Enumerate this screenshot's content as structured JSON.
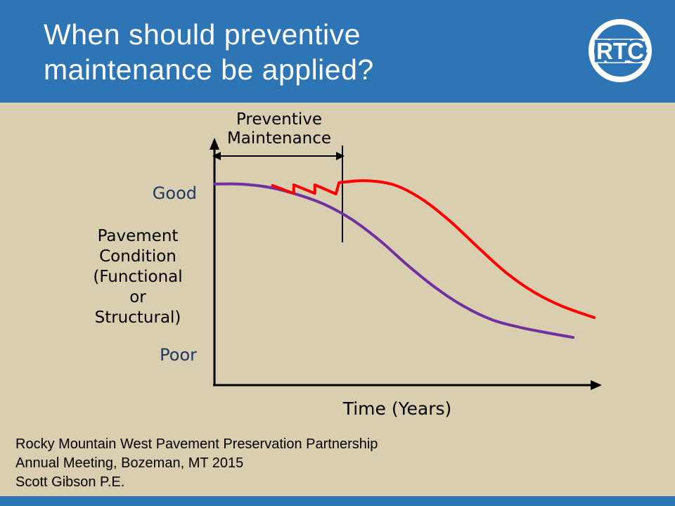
{
  "slide": {
    "title_lines": [
      "When should preventive",
      "maintenance be applied?"
    ],
    "logo_text": "RTC",
    "footer_lines": [
      "Rocky Mountain West Pavement Preservation Partnership",
      "Annual Meeting, Bozeman, MT 2015",
      "Scott Gibson P.E."
    ]
  },
  "colors": {
    "header_blue": "#2E75B6",
    "body_tan": "#D9CFB0",
    "label_navy": "#1F3864",
    "axis_black": "#000000",
    "curve_purple": "#7030A0",
    "curve_red": "#FF0000",
    "title_white": "#FFFFFF"
  },
  "chart_data": {
    "type": "line",
    "title": "",
    "xlabel": "Time (Years)",
    "ylabel_lines": [
      "Pavement",
      "Condition",
      "(Functional",
      "or",
      "Structural)"
    ],
    "y_axis_qualitative_labels": {
      "top": "Good",
      "bottom": "Poor"
    },
    "annotation": {
      "label_lines": [
        "Preventive",
        "Maintenance"
      ]
    },
    "x_range_normalized": [
      0,
      1
    ],
    "y_range_normalized": [
      0,
      1
    ],
    "grid": false,
    "legend": "none",
    "series": [
      {
        "id": "deterioration-curve-no-maintenance",
        "color": "#7030A0",
        "width": 4,
        "segments": [
          {
            "smooth": true,
            "points": [
              [
                0.0,
                0.822
              ],
              [
                0.064,
                0.822
              ],
              [
                0.138,
                0.81
              ],
              [
                0.211,
                0.782
              ],
              [
                0.284,
                0.741
              ],
              [
                0.358,
                0.678
              ],
              [
                0.431,
                0.592
              ],
              [
                0.505,
                0.489
              ],
              [
                0.578,
                0.397
              ],
              [
                0.651,
                0.322
              ],
              [
                0.725,
                0.267
              ],
              [
                0.798,
                0.236
              ],
              [
                0.872,
                0.213
              ],
              [
                0.936,
                0.195
              ]
            ]
          }
        ]
      },
      {
        "id": "deterioration-curve-with-preventive-maintenance",
        "color": "#FF0000",
        "width": 4,
        "segments": [
          {
            "smooth": false,
            "points": [
              [
                0.152,
                0.816
              ],
              [
                0.207,
                0.784
              ],
              [
                0.207,
                0.819
              ],
              [
                0.262,
                0.784
              ],
              [
                0.262,
                0.819
              ],
              [
                0.317,
                0.782
              ],
              [
                0.325,
                0.828
              ]
            ]
          },
          {
            "smooth": true,
            "points": [
              [
                0.325,
                0.828
              ],
              [
                0.394,
                0.836
              ],
              [
                0.468,
                0.819
              ],
              [
                0.541,
                0.761
              ],
              [
                0.615,
                0.67
              ],
              [
                0.688,
                0.563
              ],
              [
                0.761,
                0.46
              ],
              [
                0.835,
                0.379
              ],
              [
                0.908,
                0.322
              ],
              [
                0.991,
                0.276
              ]
            ]
          }
        ]
      }
    ]
  }
}
